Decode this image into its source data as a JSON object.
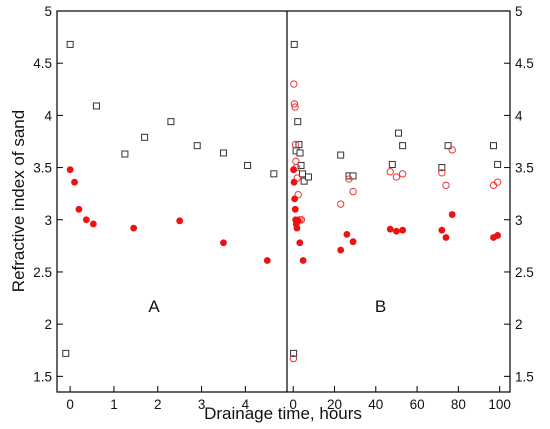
{
  "chart_data": {
    "type": "scatter",
    "xlabel": "Drainage time, hours",
    "ylabel": "Refractive index of sand",
    "ylim": [
      1.35,
      5.0
    ],
    "yticks": [
      1.5,
      2.0,
      2.5,
      3.0,
      3.5,
      4.0,
      4.5,
      5.0
    ],
    "y_tick_labels_both_sides": true,
    "grid": false,
    "legend": "none",
    "colors": {
      "filled": "#ee1111",
      "open_circle": "#ee3333",
      "open_square": "#333333"
    },
    "panels": [
      {
        "label": "A",
        "xlim": [
          -0.3,
          4.95
        ],
        "xticks": [
          0,
          1,
          2,
          3,
          4
        ],
        "series": [
          {
            "marker": "open-square",
            "points": [
              [
                -0.1,
                1.72
              ],
              [
                0.0,
                4.68
              ],
              [
                0.6,
                4.09
              ],
              [
                1.25,
                3.63
              ],
              [
                1.7,
                3.79
              ],
              [
                2.3,
                3.94
              ],
              [
                2.9,
                3.71
              ],
              [
                3.5,
                3.64
              ],
              [
                4.05,
                3.52
              ],
              [
                4.65,
                3.44
              ]
            ]
          },
          {
            "marker": "filled-circle",
            "points": [
              [
                0.0,
                3.48
              ],
              [
                0.1,
                3.36
              ],
              [
                0.2,
                3.1
              ],
              [
                0.37,
                3.0
              ],
              [
                0.53,
                2.96
              ],
              [
                1.45,
                2.92
              ],
              [
                2.5,
                2.99
              ],
              [
                3.5,
                2.78
              ],
              [
                4.5,
                2.61
              ]
            ]
          }
        ]
      },
      {
        "label": "B",
        "xlim": [
          -3,
          105
        ],
        "xticks": [
          0,
          20,
          40,
          60,
          80,
          100
        ],
        "series": [
          {
            "marker": "open-square",
            "points": [
              [
                0.2,
                1.72
              ],
              [
                0.5,
                4.68
              ],
              [
                1.4,
                3.66
              ],
              [
                2.2,
                3.94
              ],
              [
                2.8,
                3.72
              ],
              [
                3.3,
                3.64
              ],
              [
                3.8,
                3.52
              ],
              [
                4.5,
                3.44
              ],
              [
                5.3,
                3.37
              ],
              [
                7.4,
                3.41
              ],
              [
                23,
                3.62
              ],
              [
                27,
                3.42
              ],
              [
                29,
                3.42
              ],
              [
                48,
                3.53
              ],
              [
                51,
                3.83
              ],
              [
                53,
                3.71
              ],
              [
                72,
                3.5
              ],
              [
                75,
                3.71
              ],
              [
                97,
                3.71
              ],
              [
                99,
                3.53
              ]
            ]
          },
          {
            "marker": "open-circle",
            "points": [
              [
                0.1,
                1.67
              ],
              [
                0.3,
                4.3
              ],
              [
                0.6,
                4.11
              ],
              [
                0.9,
                4.08
              ],
              [
                1.1,
                3.72
              ],
              [
                1.3,
                3.56
              ],
              [
                1.6,
                3.5
              ],
              [
                2.0,
                3.4
              ],
              [
                2.4,
                3.24
              ],
              [
                3.2,
                3.0
              ],
              [
                4.0,
                3.0
              ],
              [
                23,
                3.15
              ],
              [
                27,
                3.39
              ],
              [
                29,
                3.27
              ],
              [
                47,
                3.46
              ],
              [
                50,
                3.41
              ],
              [
                53,
                3.44
              ],
              [
                72,
                3.45
              ],
              [
                74,
                3.33
              ],
              [
                77,
                3.67
              ],
              [
                97,
                3.33
              ],
              [
                99,
                3.36
              ]
            ]
          },
          {
            "marker": "filled-circle",
            "points": [
              [
                0.2,
                3.48
              ],
              [
                0.4,
                3.36
              ],
              [
                0.7,
                3.2
              ],
              [
                1.0,
                3.1
              ],
              [
                1.2,
                3.0
              ],
              [
                1.5,
                2.96
              ],
              [
                1.8,
                2.92
              ],
              [
                2.5,
                2.99
              ],
              [
                3.2,
                2.78
              ],
              [
                4.8,
                2.61
              ],
              [
                23,
                2.71
              ],
              [
                26,
                2.86
              ],
              [
                29,
                2.79
              ],
              [
                47,
                2.91
              ],
              [
                50,
                2.89
              ],
              [
                53,
                2.9
              ],
              [
                72,
                2.9
              ],
              [
                74,
                2.83
              ],
              [
                77,
                3.05
              ],
              [
                97,
                2.83
              ],
              [
                99,
                2.85
              ]
            ]
          }
        ]
      }
    ]
  }
}
